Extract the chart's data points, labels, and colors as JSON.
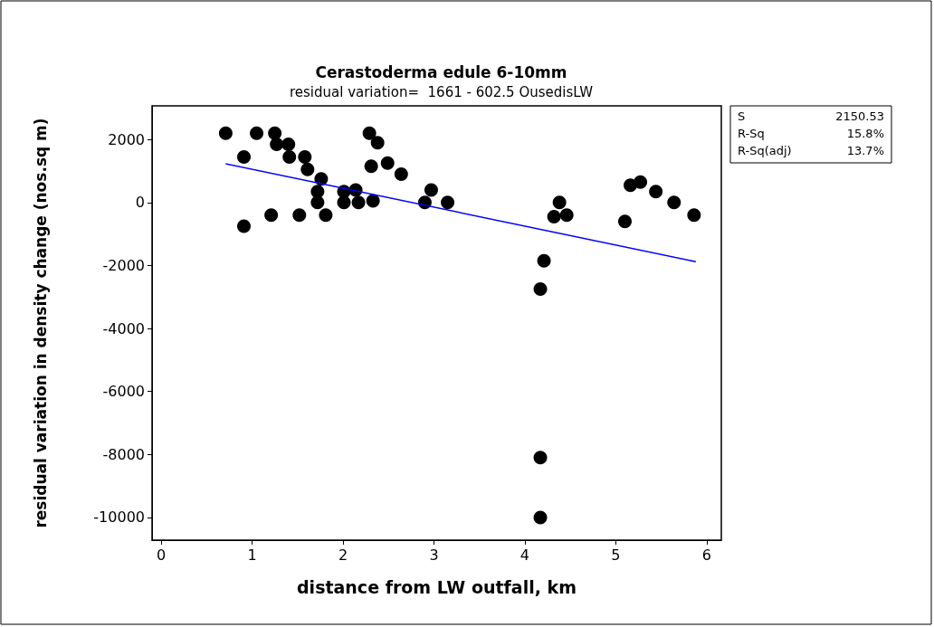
{
  "chart_data": {
    "type": "scatter",
    "title": "Cerastoderma edule 6-10mm",
    "subtitle": "residual variation=  1661 - 602.5 OusedisLW",
    "xlabel": "distance from LW outfall, km",
    "ylabel": "residual variation in density change (nos.sq m)",
    "xlim": [
      -0.1,
      6.16
    ],
    "xticks": [
      0,
      1,
      2,
      3,
      4,
      5,
      6
    ],
    "ylim": [
      -10720,
      3070
    ],
    "yticks": [
      -10000,
      -8000,
      -6000,
      -4000,
      -2000,
      0,
      2000
    ],
    "grid": false,
    "annotations": [
      "S",
      "2150.53",
      "R-Sq",
      "15.8%",
      "R-Sq(adj)",
      "13.7%"
    ],
    "series": [
      {
        "marker": "circle",
        "color": "#000000",
        "x": [
          0.71,
          0.91,
          0.91,
          1.05,
          1.25,
          1.27,
          1.4,
          1.41,
          1.21,
          1.58,
          1.61,
          1.52,
          1.76,
          1.72,
          1.72,
          1.81,
          2.01,
          2.01,
          2.14,
          2.17,
          2.33,
          2.29,
          2.38,
          2.31,
          2.49,
          2.64,
          2.97,
          2.9,
          3.15,
          4.38,
          4.32,
          4.46,
          4.21,
          4.17,
          4.17,
          4.17,
          5.16,
          5.27,
          5.44,
          5.64,
          5.86,
          5.1
        ],
        "values": [
          2200,
          1450,
          -750,
          2200,
          2200,
          1850,
          1850,
          1450,
          -400,
          1450,
          1050,
          -400,
          750,
          350,
          0,
          -400,
          350,
          0,
          400,
          0,
          50,
          2200,
          1900,
          1150,
          1250,
          900,
          400,
          0,
          0,
          0,
          -450,
          -400,
          -1850,
          -2750,
          -8100,
          -10000,
          550,
          650,
          350,
          0,
          -400,
          -600
        ]
      },
      {
        "type": "line",
        "marker": "none",
        "color": "#0000ff",
        "x": [
          0.71,
          5.88
        ],
        "values": [
          1230,
          -1880
        ]
      }
    ]
  }
}
